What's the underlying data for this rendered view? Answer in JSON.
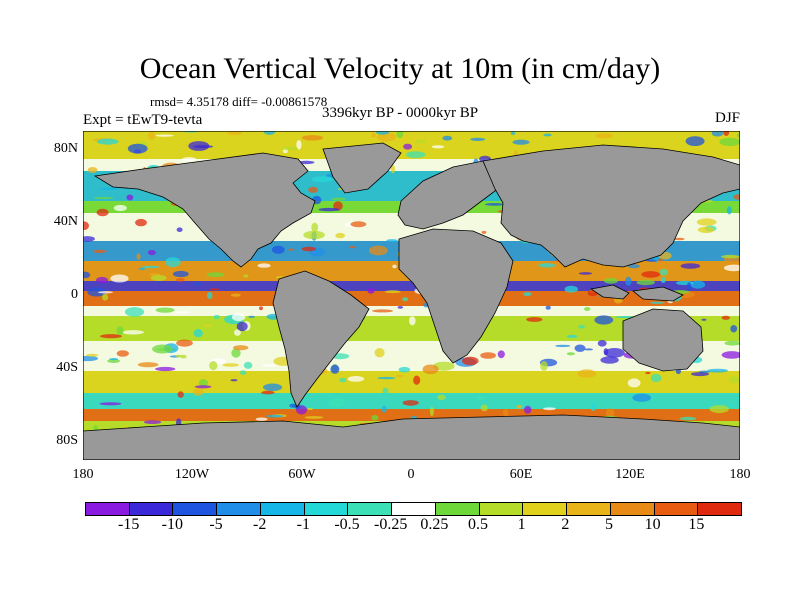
{
  "title": "Ocean Vertical Velocity at 10m (in cm/day)",
  "stats": "rmsd= 4.35178 diff= -0.00861578",
  "period": "3396kyr BP - 0000kyr BP",
  "experiment": "Expt = tEwT9-tevta",
  "season": "DJF",
  "lat_labels": [
    "80N",
    "40N",
    "0",
    "40S",
    "80S"
  ],
  "lon_labels": [
    "180",
    "120W",
    "60W",
    "0",
    "60E",
    "120E",
    "180"
  ],
  "colorbar": {
    "labels": [
      "-15",
      "-10",
      "-5",
      "-2",
      "-1",
      "-0.5",
      "-0.25",
      "0.25",
      "0.5",
      "1",
      "2",
      "5",
      "10",
      "15"
    ],
    "colors": [
      "#8b1ae0",
      "#3b28d8",
      "#1f54e0",
      "#1f8ee8",
      "#17b6e8",
      "#25d8d8",
      "#3ce0b6",
      "#ffffff",
      "#6ed83a",
      "#b6dc2a",
      "#e0d21c",
      "#e8b41a",
      "#e88a16",
      "#e85c12",
      "#e02a10"
    ]
  },
  "map_colors": {
    "land": "#999999",
    "ocean_mid": "#ffffff",
    "upwelling": "#e85c12",
    "downwelling": "#3b28d8"
  }
}
